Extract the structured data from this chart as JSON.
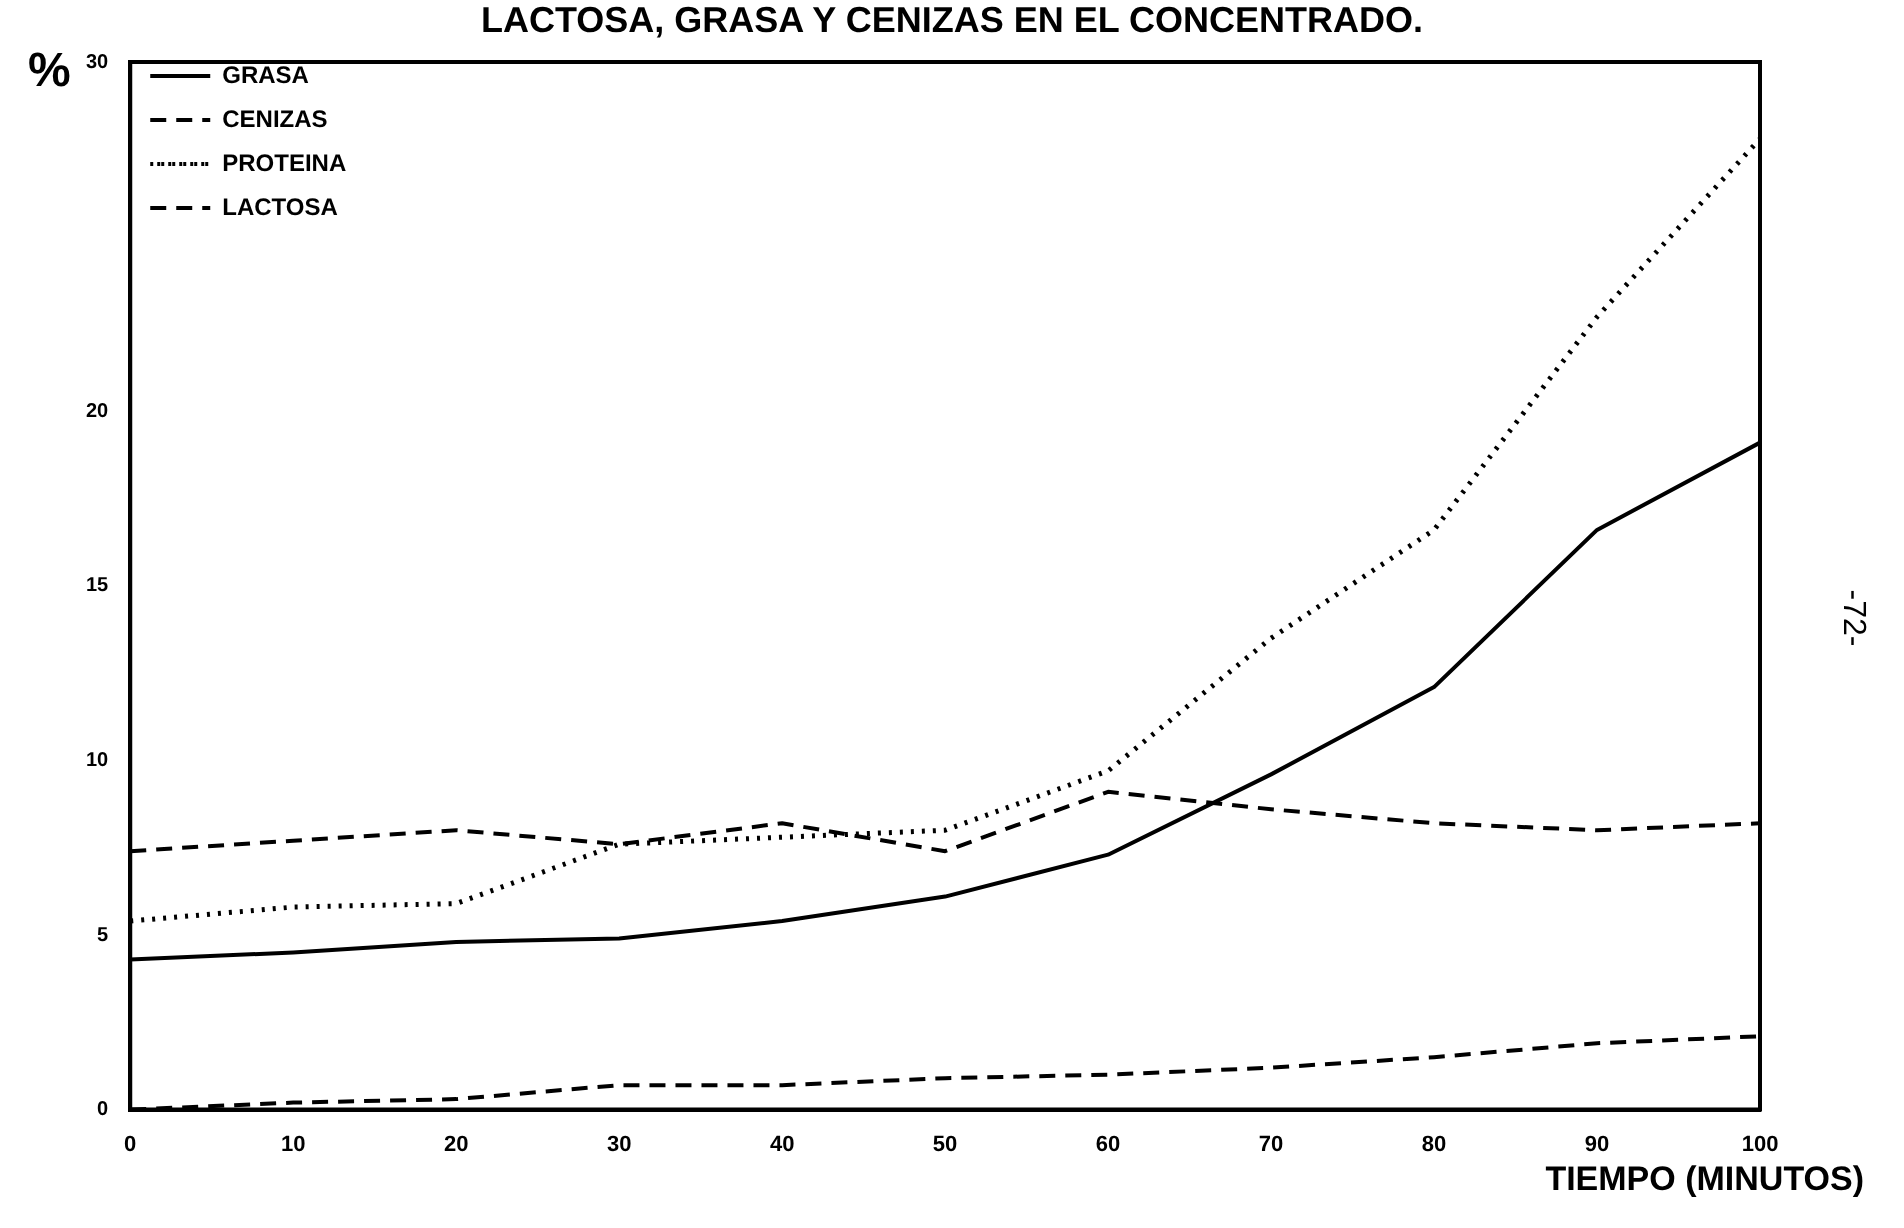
{
  "chart_data": {
    "type": "line",
    "title": "LACTOSA, GRASA Y CENIZAS EN EL CONCENTRADO.",
    "xlabel": "TIEMPO (MINUTOS)",
    "ylabel": "%",
    "x": [
      0,
      10,
      20,
      30,
      40,
      50,
      60,
      70,
      80,
      90,
      100
    ],
    "series": [
      {
        "name": "GRASA",
        "color": "#000000",
        "line_style": "solid",
        "values": [
          4.3,
          4.5,
          4.8,
          4.9,
          5.4,
          6.1,
          7.3,
          9.6,
          12.1,
          16.6,
          19.1
        ]
      },
      {
        "name": "CENIZAS",
        "color": "#000000",
        "line_style": "dashed",
        "values": [
          0,
          0.2,
          0.3,
          0.7,
          0.7,
          0.9,
          1.0,
          1.2,
          1.5,
          1.9,
          2.1
        ]
      },
      {
        "name": "PROTEINA",
        "color": "#000000",
        "line_style": "dotted",
        "values": [
          5.4,
          5.8,
          5.9,
          7.6,
          7.8,
          8.0,
          9.7,
          13.5,
          16.6,
          22.7,
          27.8
        ]
      },
      {
        "name": "LACTOSA",
        "color": "#000000",
        "line_style": "dashed",
        "values": [
          7.4,
          7.7,
          8.0,
          7.6,
          8.2,
          7.4,
          9.1,
          8.6,
          8.2,
          8.0,
          8.2
        ]
      }
    ],
    "xlim": [
      0,
      100
    ],
    "xticks": [
      0,
      10,
      20,
      30,
      40,
      50,
      60,
      70,
      80,
      90,
      100
    ],
    "ylim": [
      0,
      30
    ],
    "yticks": [
      0,
      5,
      10,
      15,
      20,
      30
    ],
    "grid": false,
    "legend": "top left",
    "marker": "none",
    "annotations": [
      "-72-"
    ]
  }
}
